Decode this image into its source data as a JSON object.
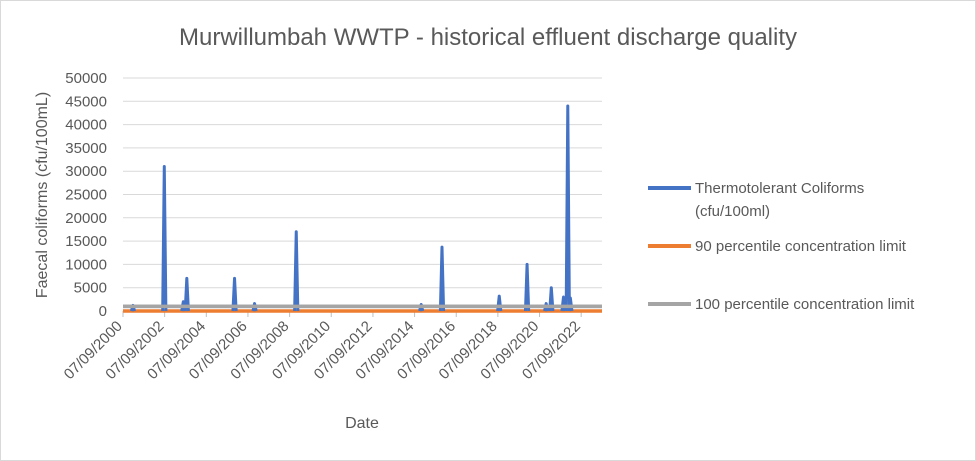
{
  "chart_data": {
    "type": "line",
    "title": "Murwillumbah WWTP - historical effluent discharge quality",
    "xlabel": "Date",
    "ylabel": "Faecal coliforms (cfu/100mL)",
    "ylim": [
      0,
      50000
    ],
    "yticks": [
      "0",
      "5000",
      "10000",
      "15000",
      "20000",
      "25000",
      "30000",
      "35000",
      "40000",
      "45000",
      "50000"
    ],
    "xlim": [
      "07/09/2000",
      "07/09/2023"
    ],
    "xticks": [
      "07/09/2000",
      "07/09/2002",
      "07/09/2004",
      "07/09/2006",
      "07/09/2008",
      "07/09/2010",
      "07/09/2012",
      "07/09/2014",
      "07/09/2016",
      "07/09/2018",
      "07/09/2020",
      "07/09/2022"
    ],
    "legend_position": "right",
    "series": [
      {
        "name": "Thermotolerant Coliforms (cfu/100ml)",
        "color": "#4472C4",
        "spikes": [
          {
            "x": "2001-03-01",
            "y": 1200
          },
          {
            "x": "2002-09-01",
            "y": 31000
          },
          {
            "x": "2003-08-01",
            "y": 2000
          },
          {
            "x": "2003-10-01",
            "y": 7000
          },
          {
            "x": "2006-01-15",
            "y": 7000
          },
          {
            "x": "2007-01-01",
            "y": 1600
          },
          {
            "x": "2009-01-01",
            "y": 17000
          },
          {
            "x": "2015-01-01",
            "y": 1400
          },
          {
            "x": "2016-01-01",
            "y": 13700
          },
          {
            "x": "2018-10-01",
            "y": 3200
          },
          {
            "x": "2020-02-01",
            "y": 10000
          },
          {
            "x": "2021-01-01",
            "y": 1600
          },
          {
            "x": "2021-04-01",
            "y": 5000
          },
          {
            "x": "2021-11-01",
            "y": 3000
          },
          {
            "x": "2022-01-15",
            "y": 44000
          },
          {
            "x": "2022-03-01",
            "y": 2800
          }
        ]
      },
      {
        "name": "90 percentile concentration limit",
        "color": "#ED7D31",
        "constant": 0
      },
      {
        "name": "100 percentile concentration limit",
        "color": "#A5A5A5",
        "constant": 1000
      }
    ]
  }
}
